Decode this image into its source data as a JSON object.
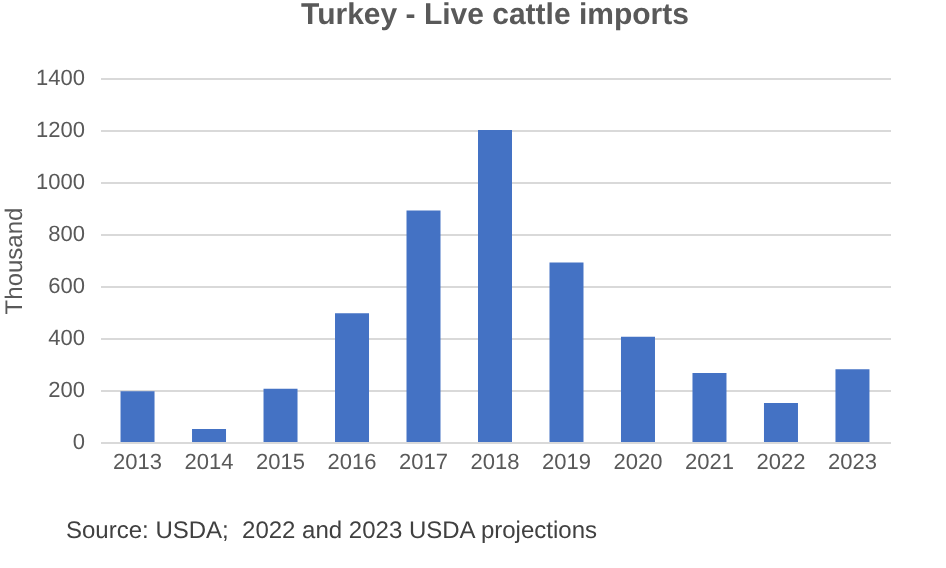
{
  "chart_data": {
    "type": "bar",
    "title": "Turkey - Live cattle imports",
    "ylabel": "Thousand",
    "categories": [
      "2013",
      "2014",
      "2015",
      "2016",
      "2017",
      "2018",
      "2019",
      "2020",
      "2021",
      "2022",
      "2023"
    ],
    "values": [
      195,
      50,
      205,
      495,
      890,
      1200,
      690,
      405,
      265,
      150,
      280
    ],
    "color": "#4472c4",
    "ylim": [
      0,
      1400
    ],
    "yticks": [
      0,
      200,
      400,
      600,
      800,
      1000,
      1200,
      1400
    ],
    "grid": "y",
    "annotations": [
      "Source: USDA;  2022 and 2023 USDA projections"
    ]
  }
}
